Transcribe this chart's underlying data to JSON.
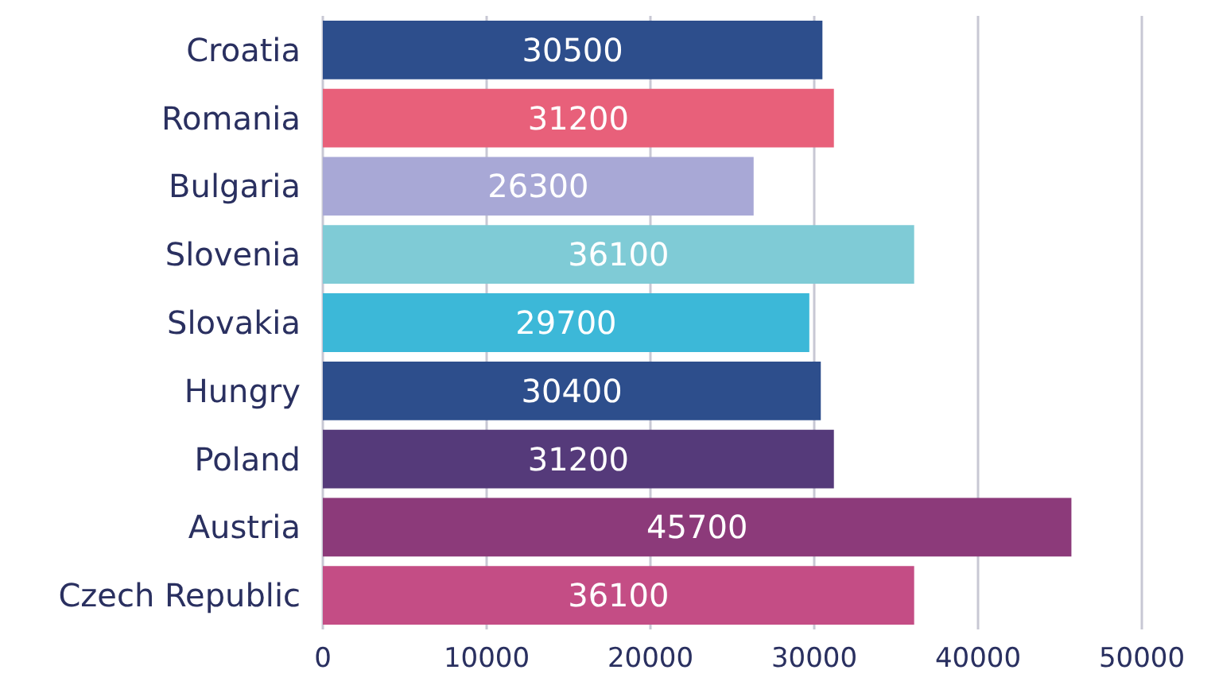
{
  "chart_data": {
    "type": "bar",
    "orientation": "horizontal",
    "categories": [
      "Croatia",
      "Romania",
      "Bulgaria",
      "Slovenia",
      "Slovakia",
      "Hungry",
      "Poland",
      "Austria",
      "Czech Republic"
    ],
    "values": [
      30500,
      31200,
      26300,
      36100,
      29700,
      30400,
      31200,
      45700,
      36100
    ],
    "colors": [
      "#2d4e8c",
      "#e8607a",
      "#a8a8d6",
      "#7fcbd6",
      "#3cb8d8",
      "#2d4e8c",
      "#553a7a",
      "#8c3a7a",
      "#c44d85"
    ],
    "xlim": [
      0,
      50000
    ],
    "xticks": [
      0,
      10000,
      20000,
      30000,
      40000,
      50000
    ],
    "grid": "x",
    "data_labels": true
  }
}
